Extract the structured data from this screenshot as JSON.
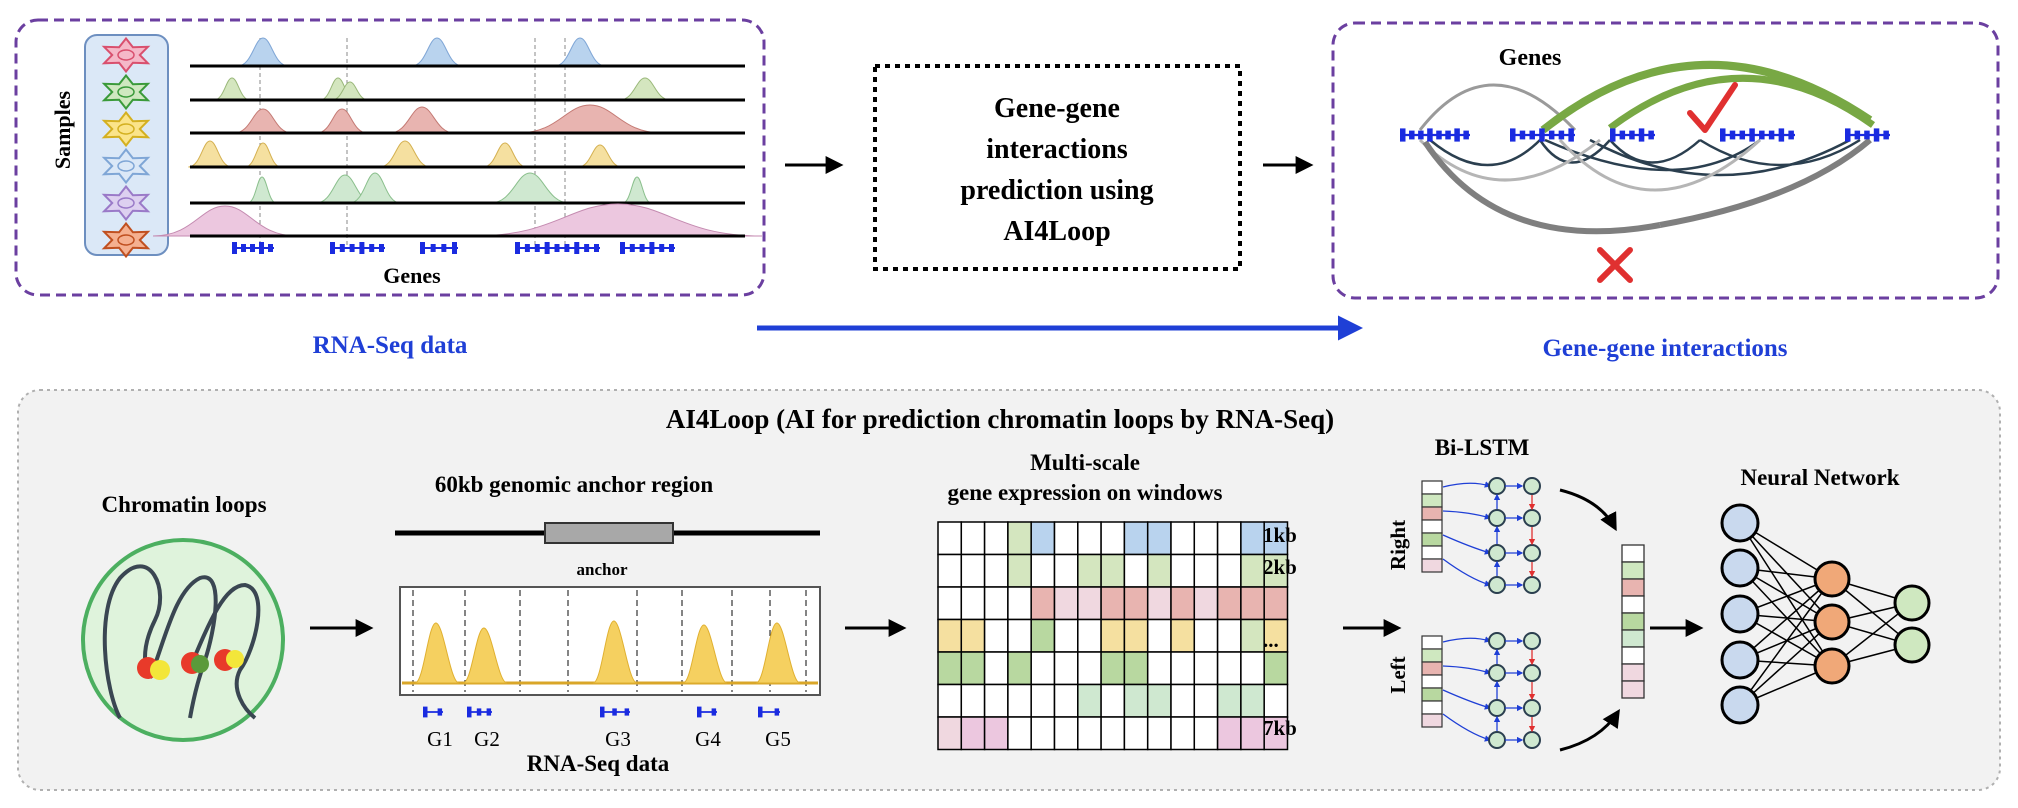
{
  "top": {
    "samples_label": "Samples",
    "genes_label_left": "Genes",
    "rnaseq_caption": "RNA-Seq data",
    "box_lines": [
      "Gene-gene",
      "interactions",
      "prediction using",
      "AI4Loop"
    ],
    "genes_label_right": "Genes",
    "interactions_caption": "Gene-gene interactions"
  },
  "bottom": {
    "title": "AI4Loop (AI for prediction chromatin loops by RNA-Seq)",
    "chromatin_label": "Chromatin loops",
    "anchor_region_label": "60kb genomic  anchor region",
    "anchor_label": "anchor",
    "gene_names": [
      "G1",
      "G2",
      "G3",
      "G4",
      "G5"
    ],
    "rnaseq_label": "RNA-Seq data",
    "multiscale_line1": "Multi-scale",
    "multiscale_line2": "gene expression on windows",
    "scale_labels": [
      "1kb",
      "2kb",
      "...",
      "7kb"
    ],
    "bilstm_label": "Bi-LSTM",
    "right_label": "Right",
    "left_label": "Left",
    "nn_label": "Neural Network"
  },
  "colors": {
    "purple_dash": "#6b3fa0",
    "blue_caption": "#1f3fd6",
    "green_arc": "#78a844",
    "gray_arc": "#7f7f7f",
    "dark_arc": "#2b3f4f",
    "check_red": "#e03030",
    "panel_bg": "#f2f2f2",
    "peak_yellow": "#f5d060",
    "node_blue": "#c9d9ee",
    "node_orange": "#f0a878",
    "node_green": "#cfe8c0"
  }
}
